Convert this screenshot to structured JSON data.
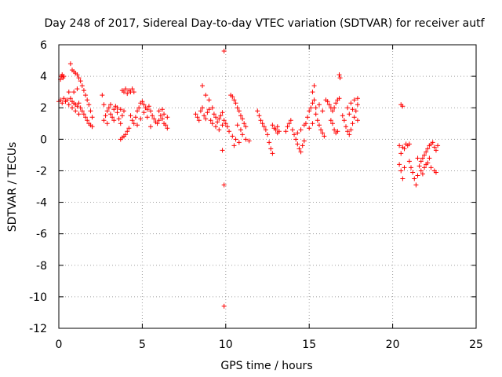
{
  "chart_data": {
    "type": "scatter",
    "title": "Day 248 of 2017, Sidereal Day-to-day VTEC variation (SDTVAR) for receiver autf",
    "xlabel": "GPS time / hours",
    "ylabel": "SDTVAR / TECUs",
    "xlim": [
      0,
      25
    ],
    "ylim": [
      -12,
      6
    ],
    "xticks": [
      "0",
      "5",
      "10",
      "15",
      "20",
      "25"
    ],
    "yticks": [
      "6",
      "4",
      "2",
      "0",
      "-2",
      "-4",
      "-6",
      "-8",
      "-10",
      "-12"
    ],
    "grid": true,
    "marker": "+",
    "color": "#ff0000",
    "series": [
      {
        "name": "SDTVAR",
        "points": [
          [
            0.0,
            2.4
          ],
          [
            0.1,
            3.8
          ],
          [
            0.15,
            4.0
          ],
          [
            0.2,
            4.1
          ],
          [
            0.25,
            3.9
          ],
          [
            0.3,
            4.0
          ],
          [
            0.1,
            2.5
          ],
          [
            0.2,
            2.3
          ],
          [
            0.3,
            2.6
          ],
          [
            0.4,
            2.4
          ],
          [
            0.5,
            2.5
          ],
          [
            0.6,
            3.0
          ],
          [
            0.7,
            4.8
          ],
          [
            0.8,
            4.4
          ],
          [
            0.9,
            4.3
          ],
          [
            1.0,
            4.2
          ],
          [
            1.1,
            4.1
          ],
          [
            1.2,
            3.9
          ],
          [
            1.3,
            3.7
          ],
          [
            1.4,
            3.4
          ],
          [
            1.5,
            3.1
          ],
          [
            1.6,
            2.8
          ],
          [
            1.7,
            2.5
          ],
          [
            1.8,
            2.2
          ],
          [
            1.9,
            1.8
          ],
          [
            2.0,
            1.4
          ],
          [
            0.7,
            2.6
          ],
          [
            0.8,
            2.4
          ],
          [
            0.9,
            2.3
          ],
          [
            1.0,
            2.2
          ],
          [
            1.1,
            2.1
          ],
          [
            1.2,
            2.3
          ],
          [
            1.3,
            2.0
          ],
          [
            1.4,
            1.8
          ],
          [
            1.5,
            1.6
          ],
          [
            1.6,
            1.4
          ],
          [
            1.7,
            1.2
          ],
          [
            1.8,
            1.0
          ],
          [
            1.9,
            0.9
          ],
          [
            2.0,
            0.8
          ],
          [
            0.6,
            2.2
          ],
          [
            0.8,
            2.0
          ],
          [
            1.0,
            1.8
          ],
          [
            1.2,
            1.6
          ],
          [
            0.9,
            3.0
          ],
          [
            1.1,
            3.2
          ],
          [
            2.6,
            2.8
          ],
          [
            2.7,
            2.2
          ],
          [
            2.8,
            1.5
          ],
          [
            2.9,
            1.8
          ],
          [
            3.0,
            2.0
          ],
          [
            3.1,
            1.6
          ],
          [
            3.2,
            1.4
          ],
          [
            3.3,
            1.9
          ],
          [
            3.4,
            2.1
          ],
          [
            3.5,
            1.7
          ],
          [
            3.6,
            1.3
          ],
          [
            3.7,
            1.0
          ],
          [
            3.8,
            1.5
          ],
          [
            3.9,
            1.8
          ],
          [
            2.7,
            1.2
          ],
          [
            2.9,
            1.0
          ],
          [
            3.1,
            2.2
          ],
          [
            3.3,
            1.2
          ],
          [
            3.5,
            2.0
          ],
          [
            3.7,
            1.9
          ],
          [
            3.7,
            0.0
          ],
          [
            3.8,
            0.1
          ],
          [
            3.9,
            0.2
          ],
          [
            4.0,
            0.3
          ],
          [
            4.1,
            0.5
          ],
          [
            4.2,
            0.7
          ],
          [
            3.8,
            3.1
          ],
          [
            3.9,
            3.0
          ],
          [
            4.0,
            3.2
          ],
          [
            4.1,
            2.9
          ],
          [
            4.2,
            3.1
          ],
          [
            4.3,
            3.0
          ],
          [
            4.4,
            3.2
          ],
          [
            4.5,
            3.0
          ],
          [
            4.3,
            1.5
          ],
          [
            4.4,
            1.2
          ],
          [
            4.5,
            1.0
          ],
          [
            4.6,
            1.4
          ],
          [
            4.7,
            1.8
          ],
          [
            4.8,
            2.0
          ],
          [
            4.9,
            2.3
          ],
          [
            5.0,
            2.4
          ],
          [
            5.1,
            2.2
          ],
          [
            5.2,
            2.0
          ],
          [
            5.3,
            1.9
          ],
          [
            5.4,
            2.1
          ],
          [
            5.5,
            1.8
          ],
          [
            5.6,
            1.5
          ],
          [
            5.7,
            1.3
          ],
          [
            5.8,
            1.1
          ],
          [
            5.9,
            1.0
          ],
          [
            6.0,
            1.2
          ],
          [
            6.1,
            1.5
          ],
          [
            6.2,
            1.3
          ],
          [
            6.3,
            1.0
          ],
          [
            6.4,
            0.9
          ],
          [
            6.5,
            0.7
          ],
          [
            4.7,
            0.9
          ],
          [
            4.9,
            1.3
          ],
          [
            5.1,
            1.7
          ],
          [
            5.3,
            1.4
          ],
          [
            5.5,
            0.8
          ],
          [
            6.0,
            1.8
          ],
          [
            6.2,
            1.9
          ],
          [
            6.3,
            1.6
          ],
          [
            6.5,
            1.4
          ],
          [
            8.2,
            1.6
          ],
          [
            8.3,
            1.4
          ],
          [
            8.4,
            1.2
          ],
          [
            8.5,
            1.8
          ],
          [
            8.6,
            2.0
          ],
          [
            8.7,
            1.5
          ],
          [
            8.8,
            1.3
          ],
          [
            8.9,
            1.7
          ],
          [
            9.0,
            1.9
          ],
          [
            9.1,
            1.2
          ],
          [
            9.2,
            1.0
          ],
          [
            9.3,
            1.6
          ],
          [
            9.4,
            1.4
          ],
          [
            9.5,
            1.1
          ],
          [
            9.6,
            1.3
          ],
          [
            9.7,
            1.5
          ],
          [
            9.8,
            1.7
          ],
          [
            9.9,
            1.2
          ],
          [
            10.0,
            1.0
          ],
          [
            10.1,
            0.8
          ],
          [
            8.6,
            3.4
          ],
          [
            8.8,
            2.8
          ],
          [
            9.0,
            2.5
          ],
          [
            9.2,
            2.0
          ],
          [
            9.4,
            0.8
          ],
          [
            9.6,
            0.6
          ],
          [
            9.8,
            0.9
          ],
          [
            9.9,
            5.6
          ],
          [
            9.8,
            -0.7
          ],
          [
            9.9,
            -2.9
          ],
          [
            9.9,
            -10.6
          ],
          [
            10.3,
            2.8
          ],
          [
            10.4,
            2.7
          ],
          [
            10.5,
            2.5
          ],
          [
            10.6,
            2.3
          ],
          [
            10.7,
            2.0
          ],
          [
            10.8,
            1.8
          ],
          [
            10.9,
            1.5
          ],
          [
            11.0,
            1.3
          ],
          [
            11.1,
            1.0
          ],
          [
            11.2,
            0.8
          ],
          [
            10.2,
            0.5
          ],
          [
            10.4,
            0.2
          ],
          [
            10.6,
            0.0
          ],
          [
            10.8,
            -0.2
          ],
          [
            11.0,
            0.3
          ],
          [
            11.2,
            0.0
          ],
          [
            11.4,
            -0.1
          ],
          [
            10.5,
            -0.4
          ],
          [
            10.7,
            0.9
          ],
          [
            10.9,
            0.6
          ],
          [
            11.9,
            1.8
          ],
          [
            12.0,
            1.5
          ],
          [
            12.1,
            1.2
          ],
          [
            12.2,
            1.0
          ],
          [
            12.3,
            0.8
          ],
          [
            12.4,
            0.6
          ],
          [
            12.5,
            0.3
          ],
          [
            12.6,
            -0.2
          ],
          [
            12.7,
            -0.6
          ],
          [
            12.8,
            -0.9
          ],
          [
            12.9,
            0.7
          ],
          [
            13.0,
            0.6
          ],
          [
            13.1,
            0.8
          ],
          [
            13.2,
            0.5
          ],
          [
            12.8,
            0.9
          ],
          [
            13.1,
            0.4
          ],
          [
            13.6,
            0.5
          ],
          [
            13.7,
            0.8
          ],
          [
            13.8,
            1.0
          ],
          [
            13.9,
            1.2
          ],
          [
            14.0,
            0.6
          ],
          [
            14.1,
            0.3
          ],
          [
            14.2,
            0.0
          ],
          [
            14.3,
            -0.3
          ],
          [
            14.4,
            -0.6
          ],
          [
            14.5,
            -0.8
          ],
          [
            14.6,
            -0.4
          ],
          [
            14.7,
            -0.1
          ],
          [
            14.3,
            0.4
          ],
          [
            14.5,
            0.6
          ],
          [
            14.7,
            0.9
          ],
          [
            14.8,
            1.0
          ],
          [
            14.9,
            1.4
          ],
          [
            15.0,
            1.8
          ],
          [
            15.1,
            2.0
          ],
          [
            15.2,
            2.3
          ],
          [
            15.3,
            2.5
          ],
          [
            15.4,
            1.6
          ],
          [
            15.5,
            1.2
          ],
          [
            15.6,
            0.9
          ],
          [
            15.7,
            0.6
          ],
          [
            15.8,
            0.4
          ],
          [
            15.9,
            0.2
          ],
          [
            15.0,
            0.7
          ],
          [
            15.2,
            1.0
          ],
          [
            15.4,
            2.0
          ],
          [
            15.6,
            2.2
          ],
          [
            15.8,
            1.8
          ],
          [
            15.2,
            3.0
          ],
          [
            15.3,
            3.4
          ],
          [
            16.0,
            2.5
          ],
          [
            16.1,
            2.4
          ],
          [
            16.2,
            2.2
          ],
          [
            16.3,
            2.0
          ],
          [
            16.4,
            1.8
          ],
          [
            16.5,
            2.0
          ],
          [
            16.6,
            2.3
          ],
          [
            16.7,
            2.5
          ],
          [
            16.8,
            2.6
          ],
          [
            16.3,
            1.2
          ],
          [
            16.4,
            1.0
          ],
          [
            16.5,
            0.6
          ],
          [
            16.6,
            0.4
          ],
          [
            16.7,
            0.5
          ],
          [
            16.8,
            4.1
          ],
          [
            16.85,
            3.9
          ],
          [
            17.0,
            1.5
          ],
          [
            17.1,
            1.2
          ],
          [
            17.2,
            0.8
          ],
          [
            17.3,
            0.5
          ],
          [
            17.4,
            0.3
          ],
          [
            17.5,
            0.6
          ],
          [
            17.6,
            1.0
          ],
          [
            17.7,
            1.4
          ],
          [
            17.8,
            1.8
          ],
          [
            17.9,
            2.2
          ],
          [
            17.9,
            2.6
          ],
          [
            17.3,
            2.0
          ],
          [
            17.5,
            2.3
          ],
          [
            17.7,
            2.5
          ],
          [
            17.9,
            1.2
          ],
          [
            17.4,
            1.6
          ],
          [
            17.6,
            1.9
          ],
          [
            20.5,
            2.2
          ],
          [
            20.6,
            2.1
          ],
          [
            20.4,
            -0.4
          ],
          [
            20.5,
            -0.9
          ],
          [
            20.6,
            -0.5
          ],
          [
            20.7,
            -0.6
          ],
          [
            20.8,
            -0.3
          ],
          [
            20.9,
            -0.4
          ],
          [
            21.0,
            -0.3
          ],
          [
            20.4,
            -1.6
          ],
          [
            20.5,
            -2.0
          ],
          [
            20.6,
            -2.5
          ],
          [
            20.7,
            -1.8
          ],
          [
            21.0,
            -1.4
          ],
          [
            21.1,
            -1.8
          ],
          [
            21.2,
            -2.1
          ],
          [
            21.3,
            -2.5
          ],
          [
            21.4,
            -2.9
          ],
          [
            21.5,
            -2.3
          ],
          [
            21.6,
            -1.7
          ],
          [
            21.7,
            -1.4
          ],
          [
            21.8,
            -1.2
          ],
          [
            21.9,
            -1.0
          ],
          [
            22.0,
            -0.8
          ],
          [
            22.1,
            -0.6
          ],
          [
            22.2,
            -0.4
          ],
          [
            22.3,
            -0.3
          ],
          [
            22.4,
            -0.2
          ],
          [
            22.5,
            -0.5
          ],
          [
            22.6,
            -0.7
          ],
          [
            22.7,
            -0.4
          ],
          [
            21.5,
            -1.2
          ],
          [
            21.7,
            -2.0
          ],
          [
            21.9,
            -1.8
          ],
          [
            22.1,
            -1.5
          ],
          [
            22.3,
            -1.8
          ],
          [
            22.5,
            -2.0
          ],
          [
            22.6,
            -2.1
          ],
          [
            22.2,
            -1.2
          ],
          [
            22.0,
            -1.6
          ],
          [
            21.8,
            -2.2
          ]
        ]
      }
    ]
  }
}
